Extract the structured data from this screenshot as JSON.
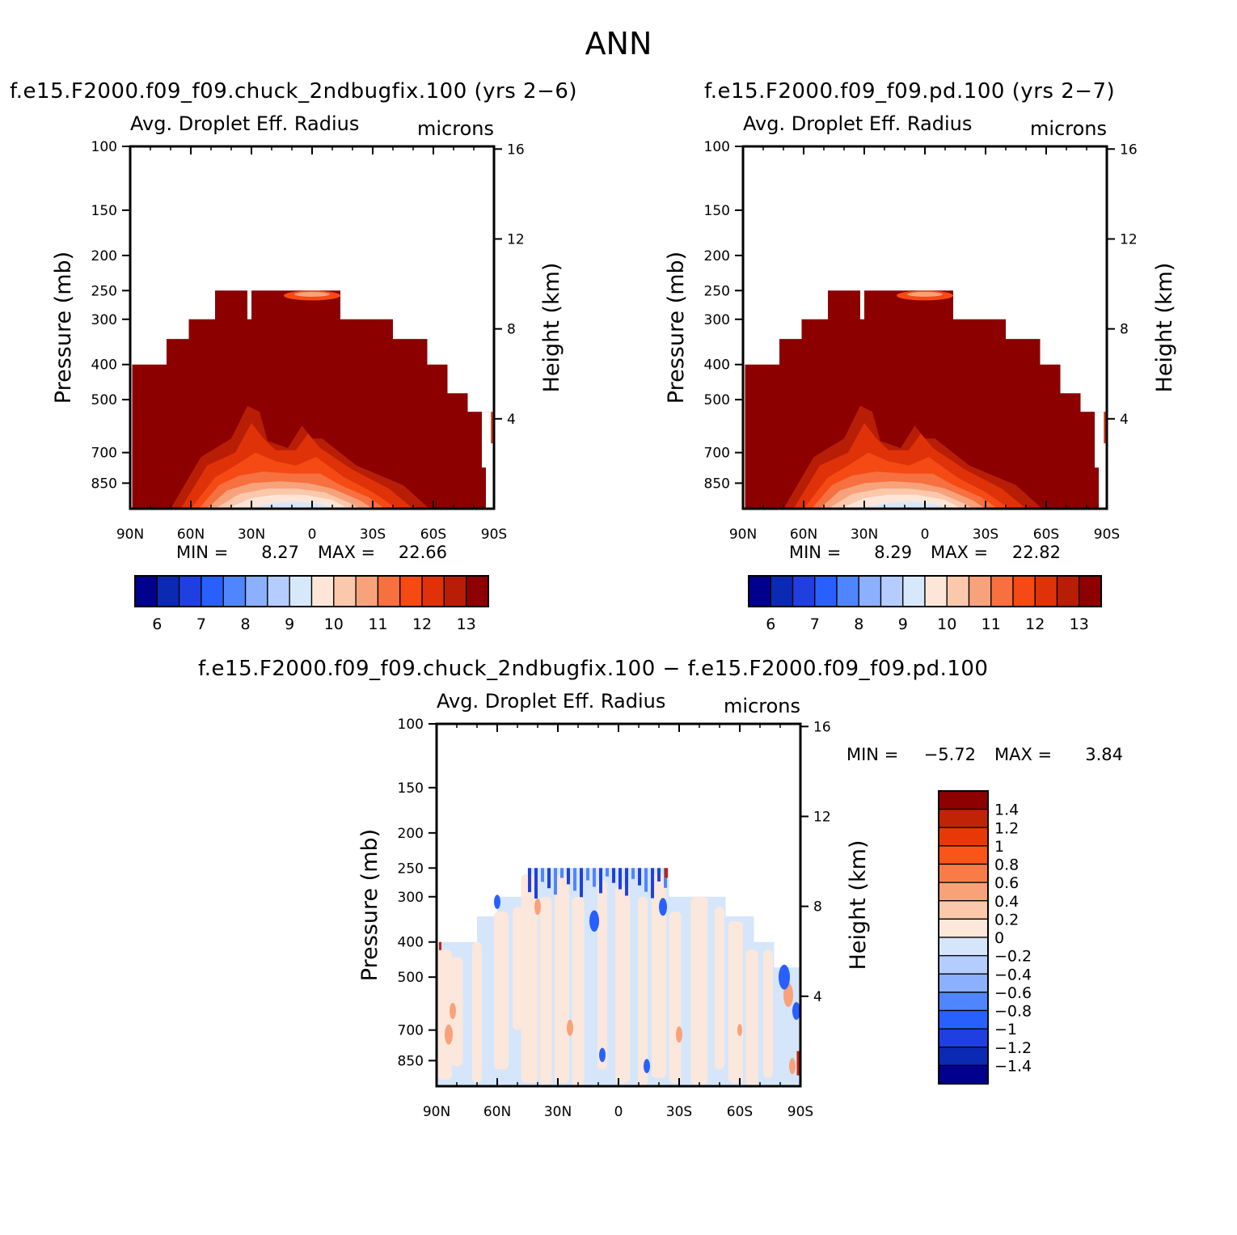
{
  "page_title": "ANN",
  "panels": [
    {
      "title": "f.e15.F2000.f09_f09.chuck_2ndbugfix.100 (yrs 2−6)",
      "variable": "Avg. Droplet Eff. Radius",
      "units": "microns",
      "min_label": "MIN =",
      "min_value": "8.27",
      "max_label": "MAX =",
      "max_value": "22.66"
    },
    {
      "title": "f.e15.F2000.f09_f09.pd.100 (yrs 2−7)",
      "variable": "Avg. Droplet Eff. Radius",
      "units": "microns",
      "min_label": "MIN =",
      "min_value": "8.29",
      "max_label": "MAX =",
      "max_value": "22.82"
    },
    {
      "title": "f.e15.F2000.f09_f09.chuck_2ndbugfix.100 − f.e15.F2000.f09_f09.pd.100",
      "variable": "Avg. Droplet Eff. Radius",
      "units": "microns",
      "min_label": "MIN =",
      "min_value": "−5.72",
      "max_label": "MAX =",
      "max_value": "3.84"
    }
  ],
  "chart_data": [
    {
      "type": "heatmap",
      "title": "f.e15.F2000.f09_f09.chuck_2ndbugfix.100 (yrs 2−6)",
      "subtitle": "Avg. Droplet Eff. Radius",
      "units": "microns",
      "xlabel": "",
      "ylabel": "Pressure (mb)",
      "ylabel_right": "Height (km)",
      "x_ticks": [
        "90N",
        "60N",
        "30N",
        "0",
        "30S",
        "60S",
        "90S"
      ],
      "y_ticks": [
        "100",
        "150",
        "200",
        "250",
        "300",
        "400",
        "500",
        "700",
        "850"
      ],
      "y_ticks_right": [
        "16",
        "12",
        "8",
        "4"
      ],
      "y_scale": "log",
      "xlim": [
        90,
        -90
      ],
      "ylim": [
        100,
        1000
      ],
      "min": 8.27,
      "max": 22.66,
      "colorbar_levels": [
        "6",
        "7",
        "8",
        "9",
        "10",
        "11",
        "12",
        "13"
      ],
      "colorbar_orientation": "horizontal"
    },
    {
      "type": "heatmap",
      "title": "f.e15.F2000.f09_f09.pd.100 (yrs 2−7)",
      "subtitle": "Avg. Droplet Eff. Radius",
      "units": "microns",
      "xlabel": "",
      "ylabel": "Pressure (mb)",
      "ylabel_right": "Height (km)",
      "x_ticks": [
        "90N",
        "60N",
        "30N",
        "0",
        "30S",
        "60S",
        "90S"
      ],
      "y_ticks": [
        "100",
        "150",
        "200",
        "250",
        "300",
        "400",
        "500",
        "700",
        "850"
      ],
      "y_ticks_right": [
        "16",
        "12",
        "8",
        "4"
      ],
      "y_scale": "log",
      "xlim": [
        90,
        -90
      ],
      "ylim": [
        100,
        1000
      ],
      "min": 8.29,
      "max": 22.82,
      "colorbar_levels": [
        "6",
        "7",
        "8",
        "9",
        "10",
        "11",
        "12",
        "13"
      ],
      "colorbar_orientation": "horizontal"
    },
    {
      "type": "heatmap",
      "title": "f.e15.F2000.f09_f09.chuck_2ndbugfix.100 − f.e15.F2000.f09_f09.pd.100",
      "subtitle": "Avg. Droplet Eff. Radius",
      "units": "microns",
      "xlabel": "",
      "ylabel": "Pressure (mb)",
      "ylabel_right": "Height (km)",
      "x_ticks": [
        "90N",
        "60N",
        "30N",
        "0",
        "30S",
        "60S",
        "90S"
      ],
      "y_ticks": [
        "100",
        "150",
        "200",
        "250",
        "300",
        "400",
        "500",
        "700",
        "850"
      ],
      "y_ticks_right": [
        "16",
        "12",
        "8",
        "4"
      ],
      "y_scale": "log",
      "xlim": [
        90,
        -90
      ],
      "ylim": [
        100,
        1000
      ],
      "min": -5.72,
      "max": 3.84,
      "colorbar_levels": [
        "1.4",
        "1.2",
        "1",
        "0.8",
        "0.6",
        "0.4",
        "0.2",
        "0",
        "−0.2",
        "−0.4",
        "−0.6",
        "−0.8",
        "−1",
        "−1.2",
        "−1.4"
      ],
      "colorbar_orientation": "vertical"
    }
  ],
  "colors": {
    "full_scale": [
      "#00008c",
      "#0a2ab4",
      "#1f3fe0",
      "#2860ff",
      "#4f85ff",
      "#8ab0ff",
      "#b5ccff",
      "#d8e8fb",
      "#fde6d8",
      "#fbc8ac",
      "#f8a27c",
      "#f77040",
      "#f54a14",
      "#e03208",
      "#b81e06",
      "#8c0000"
    ],
    "diff_scale": [
      "#8c0000",
      "#c02406",
      "#e83808",
      "#fb5418",
      "#f97c48",
      "#f9a27a",
      "#fbc8ac",
      "#fde7da",
      "#d5e6fb",
      "#b5ccff",
      "#8ab0ff",
      "#4f85ff",
      "#2860ff",
      "#1f3fe0",
      "#0a2ab4",
      "#00008c"
    ]
  }
}
